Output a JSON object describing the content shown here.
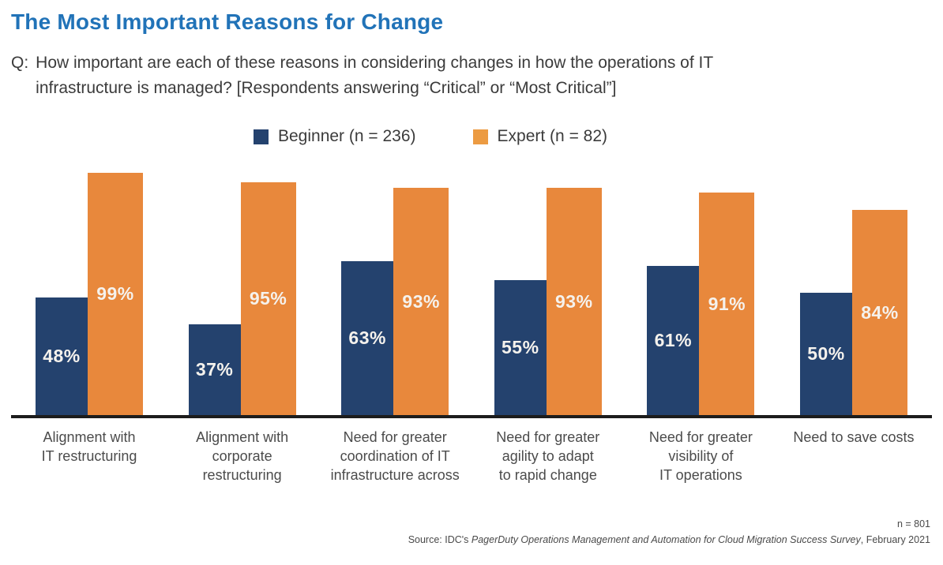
{
  "header": {
    "title": "The Most Important Reasons for Change",
    "question_prefix": "Q:",
    "question_line1": "How important are each of these reasons in considering changes in how the operations of IT",
    "question_line2": "infrastructure is managed? [Respondents answering “Critical” or “Most Critical”]"
  },
  "legend": {
    "items": [
      {
        "label": "Beginner (n = 236)",
        "color": "#24426E"
      },
      {
        "label": "Expert (n = 82)",
        "color": "#EC9B42"
      }
    ]
  },
  "chart_data": {
    "type": "bar",
    "title": "The Most Important Reasons for Change",
    "categories": [
      "Alignment with IT restructuring",
      "Alignment with corporate restructuring",
      "Need for greater coordination of IT infrastructure across",
      "Need for greater agility to adapt to rapid change",
      "Need for greater visibility of IT operations",
      "Need to save costs"
    ],
    "category_lines": [
      [
        "Alignment with",
        "IT restructuring"
      ],
      [
        "Alignment with",
        "corporate",
        "restructuring"
      ],
      [
        "Need for greater",
        "coordination of IT",
        "infrastructure across"
      ],
      [
        "Need for greater",
        "agility to adapt",
        "to rapid change"
      ],
      [
        "Need for greater",
        "visibility of",
        "IT operations"
      ],
      [
        "Need to save costs"
      ]
    ],
    "series": [
      {
        "name": "Beginner (n = 236)",
        "color": "#24426E",
        "values": [
          48,
          37,
          63,
          55,
          61,
          50
        ]
      },
      {
        "name": "Expert (n = 82)",
        "color": "#E8883C",
        "values": [
          99,
          95,
          93,
          93,
          91,
          84
        ]
      }
    ],
    "value_suffix": "%",
    "ylim": [
      0,
      100
    ],
    "grid": false,
    "legend_position": "top",
    "data_labels": "inside-center",
    "axis_color": "#1c1c1c"
  },
  "footer": {
    "n_label": "n = 801",
    "source_prefix": "Source: IDC's ",
    "source_italic": "PagerDuty Operations Management and Automation for Cloud Migration Success Survey",
    "source_suffix": ", February 2021"
  }
}
